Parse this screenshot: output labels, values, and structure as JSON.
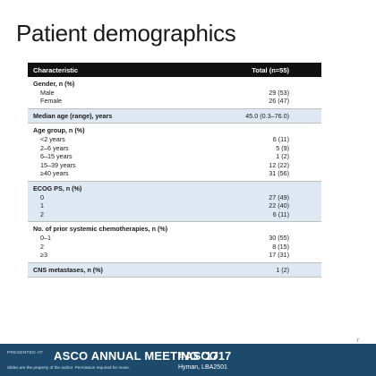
{
  "slide": {
    "title": "Patient demographics",
    "page_number": "7"
  },
  "table": {
    "header": {
      "characteristic": "Characteristic",
      "total": "Total (n=55)"
    },
    "sections": [
      {
        "shaded": false,
        "heading": {
          "label": "Gender, n (%)",
          "value": ""
        },
        "rows": [
          {
            "label": "Male",
            "value": "29 (53)"
          },
          {
            "label": "Female",
            "value": "26 (47)"
          }
        ]
      },
      {
        "shaded": true,
        "heading": {
          "label": "Median age (range), years",
          "value": "45.0 (0.3–76.0)"
        },
        "rows": []
      },
      {
        "shaded": false,
        "heading": {
          "label": "Age group, n (%)",
          "value": ""
        },
        "rows": [
          {
            "label": "<2 years",
            "value": "6 (11)"
          },
          {
            "label": "2–6 years",
            "value": "5 (9)"
          },
          {
            "label": "6–15 years",
            "value": "1 (2)"
          },
          {
            "label": "15–39 years",
            "value": "12 (22)"
          },
          {
            "label": "≥40 years",
            "value": "31 (56)"
          }
        ]
      },
      {
        "shaded": true,
        "heading": {
          "label": "ECOG PS, n (%)",
          "value": ""
        },
        "rows": [
          {
            "label": "0",
            "value": "27 (49)"
          },
          {
            "label": "1",
            "value": "22 (40)"
          },
          {
            "label": "2",
            "value": "6 (11)"
          }
        ]
      },
      {
        "shaded": false,
        "heading": {
          "label": "No. of prior systemic chemotherapies, n (%)",
          "value": ""
        },
        "rows": [
          {
            "label": "0–1",
            "value": "30 (55)"
          },
          {
            "label": "2",
            "value": "8 (15)"
          },
          {
            "label": "≥3",
            "value": "17 (31)"
          }
        ]
      },
      {
        "shaded": true,
        "heading": {
          "label": "CNS metastases, n (%)",
          "value": "1 (2)"
        },
        "rows": []
      }
    ]
  },
  "footer": {
    "presented_at": "PRESENTED AT:",
    "meeting": "ASCO ANNUAL MEETING '17",
    "hashtag": "#ASCO17",
    "disclaimer": "Slides are the property of the author. Permission required for reuse.",
    "presenter": "Hyman, LBA2501",
    "background_color": "#1d4a6b"
  }
}
